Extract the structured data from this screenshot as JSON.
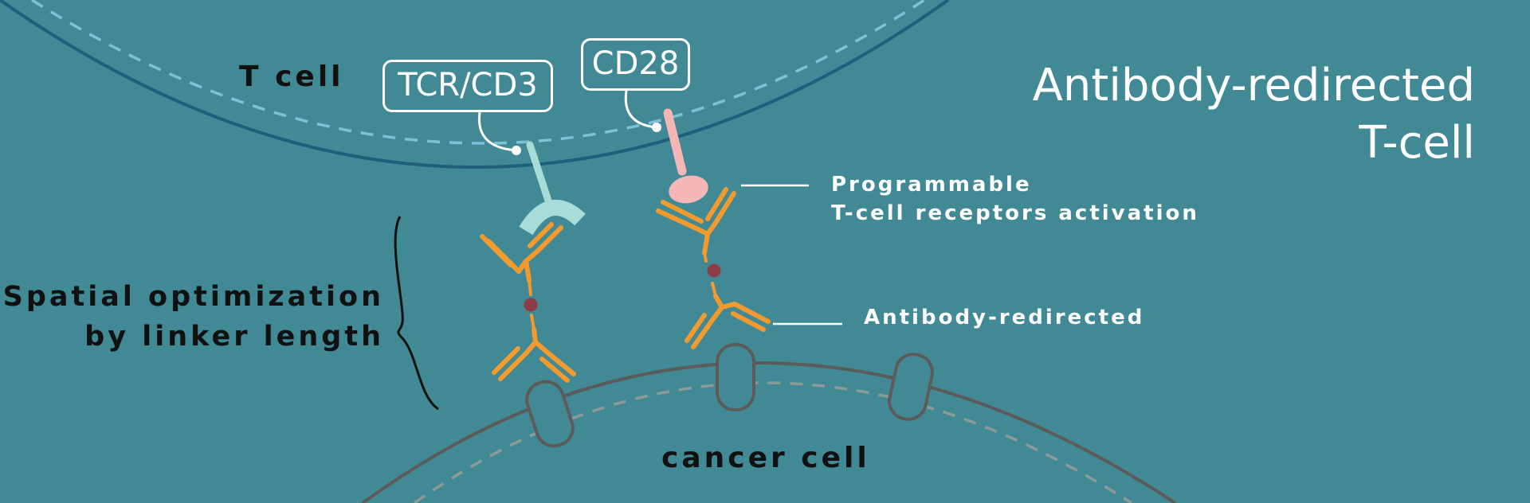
{
  "title": {
    "line1": "Antibody-redirected",
    "line2": "T-cell"
  },
  "labels": {
    "t_cell": "T cell",
    "cancer_cell": "cancer cell",
    "tcr_cd3": "TCR/CD3",
    "cd28": "CD28",
    "spatial_line1": "Spatial optimization",
    "spatial_line2": "by linker length",
    "programmable_line1": "Programmable",
    "programmable_line2": "T-cell receptors activation",
    "antibody_redirected": "Antibody-redirected"
  },
  "colors": {
    "background": "#418a95",
    "t_cell_membrane": "#1f5f7c",
    "t_cell_inner_dash": "#7fc0d6",
    "cancer_membrane": "#5b5b5b",
    "cancer_inner_dash": "#8c9a98",
    "antibody": "#f39a2e",
    "linker_dot": "#8a3d46",
    "tcr_receptor": "#a8dcd8",
    "cd28_receptor": "#f5b6b6",
    "callout": "#ffffff"
  }
}
